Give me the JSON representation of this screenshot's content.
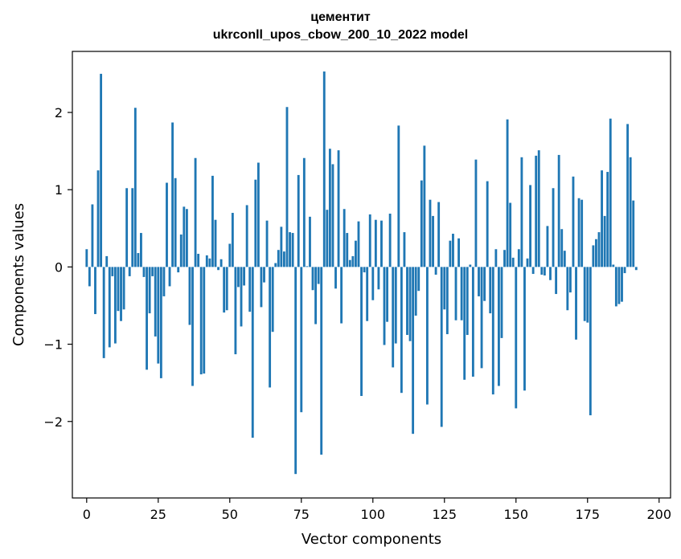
{
  "chart_data": {
    "type": "bar",
    "title": "цементит",
    "subtitle": "ukrconll_upos_cbow_200_10_2022 model",
    "xlabel": "Vector components",
    "ylabel": "Components values",
    "xlim": [
      -5,
      204
    ],
    "ylim": [
      -2.99,
      2.79
    ],
    "xticks": [
      0,
      25,
      50,
      75,
      100,
      125,
      150,
      175,
      200
    ],
    "yticks": [
      -2,
      -1,
      0,
      1,
      2
    ],
    "ytick_labels": [
      "−2",
      "−1",
      "0",
      "1",
      "2"
    ],
    "grid": false,
    "bar_color": "#1f77b4",
    "values": [
      0.23,
      -0.25,
      0.81,
      -0.61,
      1.25,
      2.5,
      -1.18,
      0.14,
      -1.04,
      -0.12,
      -0.99,
      -0.57,
      -0.7,
      -0.55,
      1.02,
      -0.12,
      1.02,
      2.06,
      0.18,
      0.44,
      -0.13,
      -1.33,
      -0.6,
      -0.12,
      -0.9,
      -1.25,
      -1.44,
      -0.38,
      1.09,
      -0.25,
      1.87,
      1.15,
      -0.07,
      0.42,
      0.78,
      0.75,
      -0.75,
      -1.54,
      1.41,
      0.17,
      -1.39,
      -1.38,
      0.15,
      0.11,
      1.18,
      0.61,
      -0.04,
      0.1,
      -0.59,
      -0.56,
      0.3,
      0.7,
      -1.13,
      -0.26,
      -0.77,
      -0.24,
      0.8,
      -0.58,
      -2.21,
      1.13,
      1.35,
      -0.52,
      -0.2,
      0.6,
      -1.56,
      -0.84,
      0.05,
      0.22,
      0.52,
      0.2,
      2.07,
      0.45,
      0.44,
      -2.68,
      1.19,
      -1.88,
      1.41,
      0.01,
      0.65,
      -0.3,
      -0.74,
      -0.22,
      -2.43,
      2.53,
      0.74,
      1.53,
      1.33,
      -0.28,
      1.51,
      -0.73,
      0.75,
      0.44,
      0.09,
      0.14,
      0.34,
      0.59,
      -1.67,
      -0.07,
      -0.7,
      0.68,
      -0.43,
      0.61,
      -0.29,
      0.6,
      -1.01,
      -0.71,
      0.69,
      -1.3,
      -0.99,
      1.83,
      -1.63,
      0.45,
      -0.88,
      -0.96,
      -2.16,
      -0.63,
      -0.31,
      1.12,
      1.57,
      -1.78,
      0.87,
      0.66,
      -0.1,
      0.84,
      -2.07,
      -0.55,
      -0.87,
      0.34,
      0.43,
      -0.69,
      0.37,
      -0.69,
      -1.46,
      -0.88,
      0.03,
      -1.42,
      1.39,
      -0.38,
      -1.31,
      -0.44,
      1.11,
      -0.6,
      -1.65,
      0.23,
      -1.54,
      -0.92,
      0.22,
      1.91,
      0.83,
      0.12,
      -1.83,
      0.23,
      1.42,
      -1.6,
      0.11,
      1.06,
      -0.09,
      1.44,
      1.51,
      -0.1,
      -0.11,
      0.53,
      -0.17,
      1.02,
      -0.35,
      1.45,
      0.49,
      0.21,
      -0.56,
      -0.33,
      1.17,
      -0.94,
      0.89,
      0.87,
      -0.7,
      -0.72,
      -1.92,
      0.28,
      0.36,
      0.45,
      1.25,
      0.66,
      1.23,
      1.92,
      0.03,
      -0.51,
      -0.48,
      -0.45,
      -0.08,
      1.85,
      1.42,
      0.86,
      -0.04
    ]
  }
}
